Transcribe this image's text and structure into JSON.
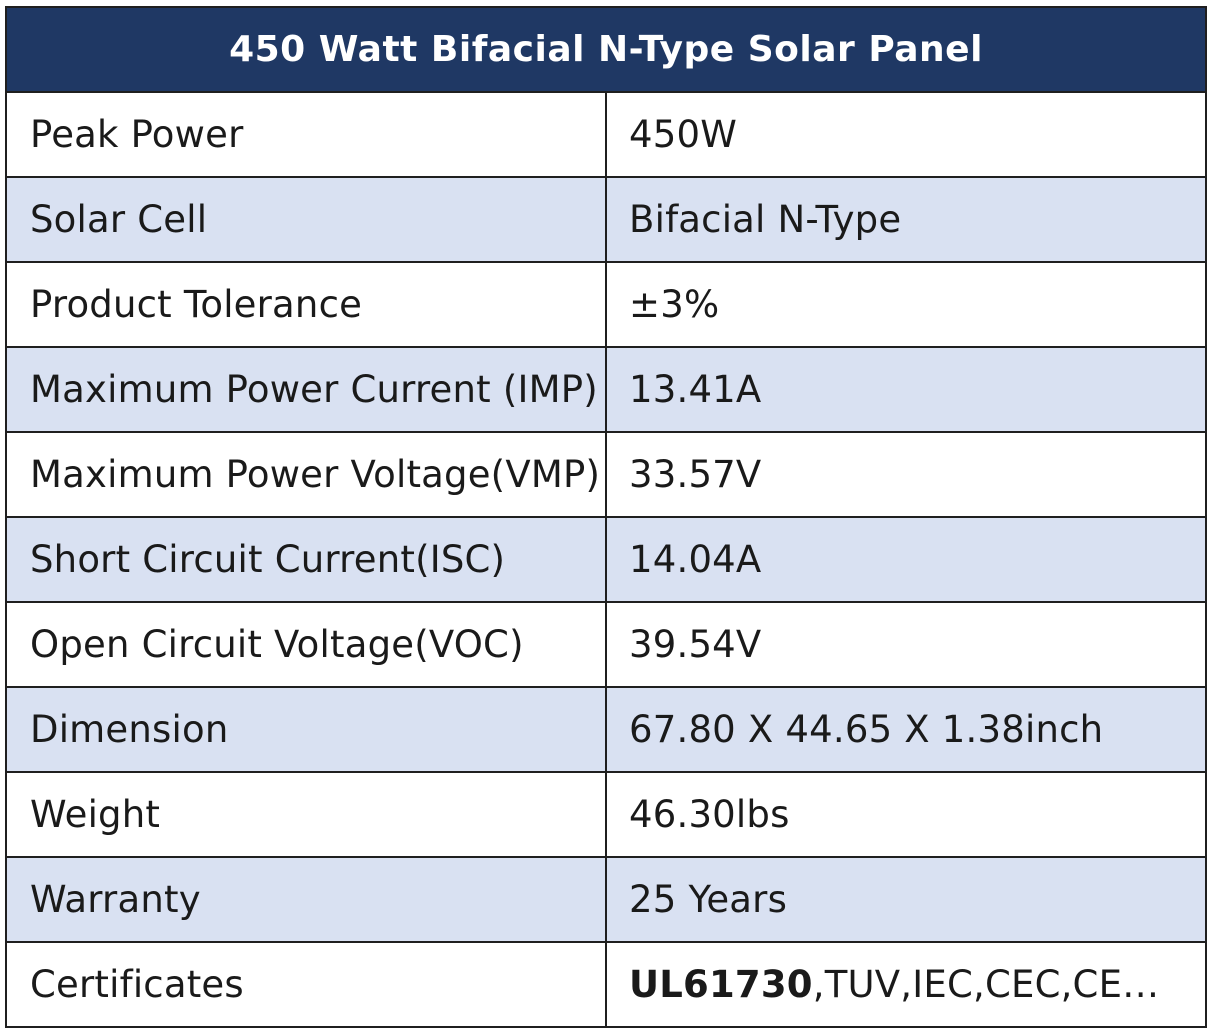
{
  "title": "450 Watt Bifacial N-Type Solar Panel",
  "colors": {
    "header_background": "#1f3864",
    "header_text": "#ffffff",
    "shaded_row": "#d9e1f2",
    "plain_row": "#ffffff",
    "border": "#1f1f1f"
  },
  "rows": [
    {
      "label": "Peak Power",
      "value": "450W"
    },
    {
      "label": "Solar Cell",
      "value": "Bifacial N-Type"
    },
    {
      "label": "Product Tolerance",
      "value": "±3%"
    },
    {
      "label": "Maximum Power Current (IMP)",
      "value": "13.41A"
    },
    {
      "label": "Maximum Power Voltage(VMP)",
      "value": "33.57V"
    },
    {
      "label": "Short Circuit Current(ISC)",
      "value": "14.04A"
    },
    {
      "label": "Open Circuit Voltage(VOC)",
      "value": "39.54V"
    },
    {
      "label": "Dimension",
      "value": "67.80 X 44.65 X 1.38inch"
    },
    {
      "label": "Weight",
      "value": "46.30lbs"
    },
    {
      "label": "Warranty",
      "value": "25 Years"
    },
    {
      "label": "Certificates",
      "value_bold": "UL61730",
      "value": ",TUV,IEC,CEC,CE…"
    }
  ]
}
